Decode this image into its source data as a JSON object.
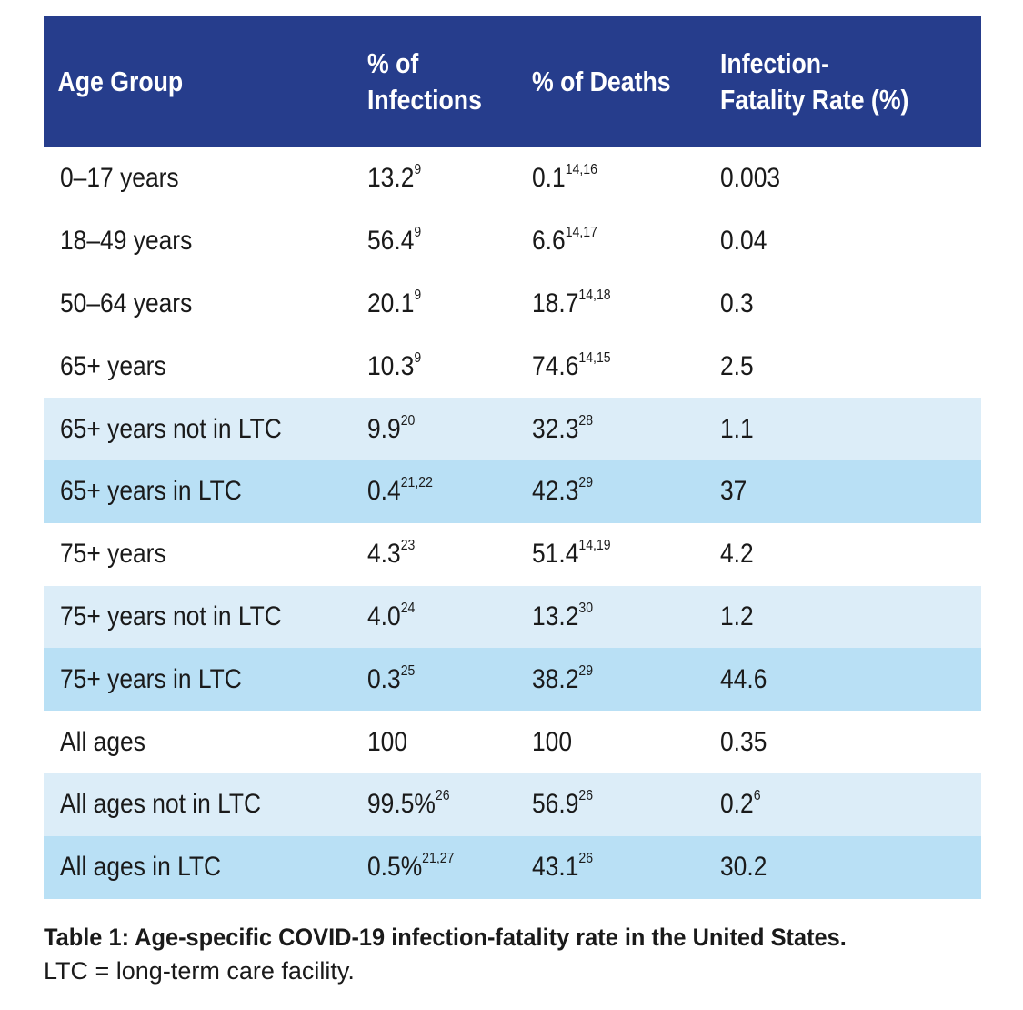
{
  "table": {
    "headers": {
      "age_group": "Age Group",
      "infections_line1": "% of",
      "infections_line2": "Infections",
      "deaths": "% of Deaths",
      "ifr_line1": "Infection-",
      "ifr_line2": "Fatality Rate (%)"
    },
    "rows": [
      {
        "age": "0–17 years",
        "inf": "13.2",
        "inf_ref": "9",
        "deaths": "0.1",
        "deaths_ref": "14,16",
        "ifr": "0.003",
        "ifr_ref": ""
      },
      {
        "age": "18–49 years",
        "inf": "56.4",
        "inf_ref": "9",
        "deaths": "6.6",
        "deaths_ref": "14,17",
        "ifr": "0.04",
        "ifr_ref": ""
      },
      {
        "age": "50–64 years",
        "inf": "20.1",
        "inf_ref": "9",
        "deaths": "18.7",
        "deaths_ref": "14,18",
        "ifr": "0.3",
        "ifr_ref": ""
      },
      {
        "age": "65+ years",
        "inf": "10.3",
        "inf_ref": "9",
        "deaths": "74.6",
        "deaths_ref": "14,15",
        "ifr": "2.5",
        "ifr_ref": ""
      },
      {
        "age": "65+ years not in LTC",
        "inf": "9.9",
        "inf_ref": "20",
        "deaths": "32.3",
        "deaths_ref": "28",
        "ifr": "1.1",
        "ifr_ref": ""
      },
      {
        "age": "65+ years in LTC",
        "inf": "0.4",
        "inf_ref": "21,22",
        "deaths": "42.3",
        "deaths_ref": "29",
        "ifr": "37",
        "ifr_ref": ""
      },
      {
        "age": "75+ years",
        "inf": "4.3",
        "inf_ref": "23",
        "deaths": "51.4",
        "deaths_ref": "14,19",
        "ifr": "4.2",
        "ifr_ref": ""
      },
      {
        "age": "75+ years not in LTC",
        "inf": "4.0",
        "inf_ref": "24",
        "deaths": "13.2",
        "deaths_ref": "30",
        "ifr": "1.2",
        "ifr_ref": ""
      },
      {
        "age": "75+ years in LTC",
        "inf": "0.3",
        "inf_ref": "25",
        "deaths": "38.2",
        "deaths_ref": "29",
        "ifr": "44.6",
        "ifr_ref": ""
      },
      {
        "age": "All ages",
        "inf": "100",
        "inf_ref": "",
        "deaths": "100",
        "deaths_ref": "",
        "ifr": "0.35",
        "ifr_ref": ""
      },
      {
        "age": "All ages not in LTC",
        "inf": "99.5%",
        "inf_ref": "26",
        "deaths": "56.9",
        "deaths_ref": "26",
        "ifr": "0.2",
        "ifr_ref": "6"
      },
      {
        "age": "All ages in LTC",
        "inf": "0.5%",
        "inf_ref": "21,27",
        "deaths": "43.1",
        "deaths_ref": "26",
        "ifr": "30.2",
        "ifr_ref": ""
      }
    ]
  },
  "caption": {
    "bold": "Table 1: Age-specific COVID-19 infection-fatality rate in the United States.",
    "plain": "LTC = long-term care facility."
  },
  "colors": {
    "header_bg": "#263d8c",
    "row_light": "#dcedf8",
    "row_blue": "#b9e0f5",
    "row_plain": "#ffffff"
  }
}
